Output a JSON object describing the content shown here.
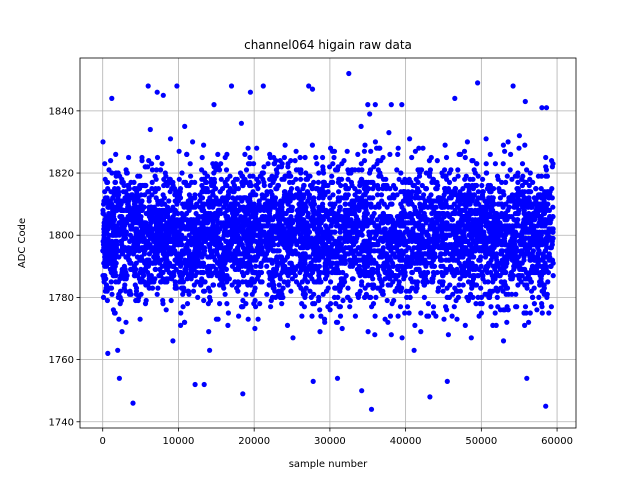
{
  "chart_data": {
    "type": "scatter",
    "title": "channel064 higain raw data",
    "xlabel": "sample number",
    "ylabel": "ADC Code",
    "xlim": [
      -3000,
      62500
    ],
    "ylim": [
      1738,
      1857
    ],
    "xticks": [
      0,
      10000,
      20000,
      30000,
      40000,
      50000,
      60000
    ],
    "xtick_labels": [
      "0",
      "10000",
      "20000",
      "30000",
      "40000",
      "50000",
      "60000"
    ],
    "yticks": [
      1740,
      1760,
      1780,
      1800,
      1820,
      1840
    ],
    "ytick_labels": [
      "1740",
      "1760",
      "1780",
      "1800",
      "1820",
      "1840"
    ],
    "grid": true,
    "marker_color": "#0000ff",
    "series": [
      {
        "sample_count": 59500,
        "x_range": [
          0,
          59500
        ],
        "mean": 1800,
        "std_dev": 11,
        "outliers": [
          {
            "x": 4000,
            "y": 1746
          },
          {
            "x": 32500,
            "y": 1852
          },
          {
            "x": 49500,
            "y": 1849
          },
          {
            "x": 35500,
            "y": 1744
          },
          {
            "x": 58500,
            "y": 1745
          },
          {
            "x": 34200,
            "y": 1750
          },
          {
            "x": 43200,
            "y": 1748
          },
          {
            "x": 18500,
            "y": 1749
          },
          {
            "x": 6000,
            "y": 1848
          },
          {
            "x": 9800,
            "y": 1848
          },
          {
            "x": 17000,
            "y": 1848
          },
          {
            "x": 21200,
            "y": 1848
          },
          {
            "x": 27200,
            "y": 1848
          },
          {
            "x": 27700,
            "y": 1847
          },
          {
            "x": 19500,
            "y": 1846
          },
          {
            "x": 54200,
            "y": 1848
          },
          {
            "x": 55800,
            "y": 1843
          },
          {
            "x": 46500,
            "y": 1844
          },
          {
            "x": 14700,
            "y": 1842
          },
          {
            "x": 35000,
            "y": 1842
          },
          {
            "x": 36000,
            "y": 1842
          },
          {
            "x": 39500,
            "y": 1842
          },
          {
            "x": 58000,
            "y": 1841
          },
          {
            "x": 58600,
            "y": 1841
          },
          {
            "x": 1200,
            "y": 1844
          },
          {
            "x": 7200,
            "y": 1846
          },
          {
            "x": 8000,
            "y": 1845
          },
          {
            "x": 12200,
            "y": 1752
          },
          {
            "x": 13400,
            "y": 1752
          },
          {
            "x": 2200,
            "y": 1754
          },
          {
            "x": 27800,
            "y": 1753
          },
          {
            "x": 31000,
            "y": 1754
          },
          {
            "x": 45500,
            "y": 1753
          },
          {
            "x": 56000,
            "y": 1754
          }
        ]
      }
    ]
  }
}
